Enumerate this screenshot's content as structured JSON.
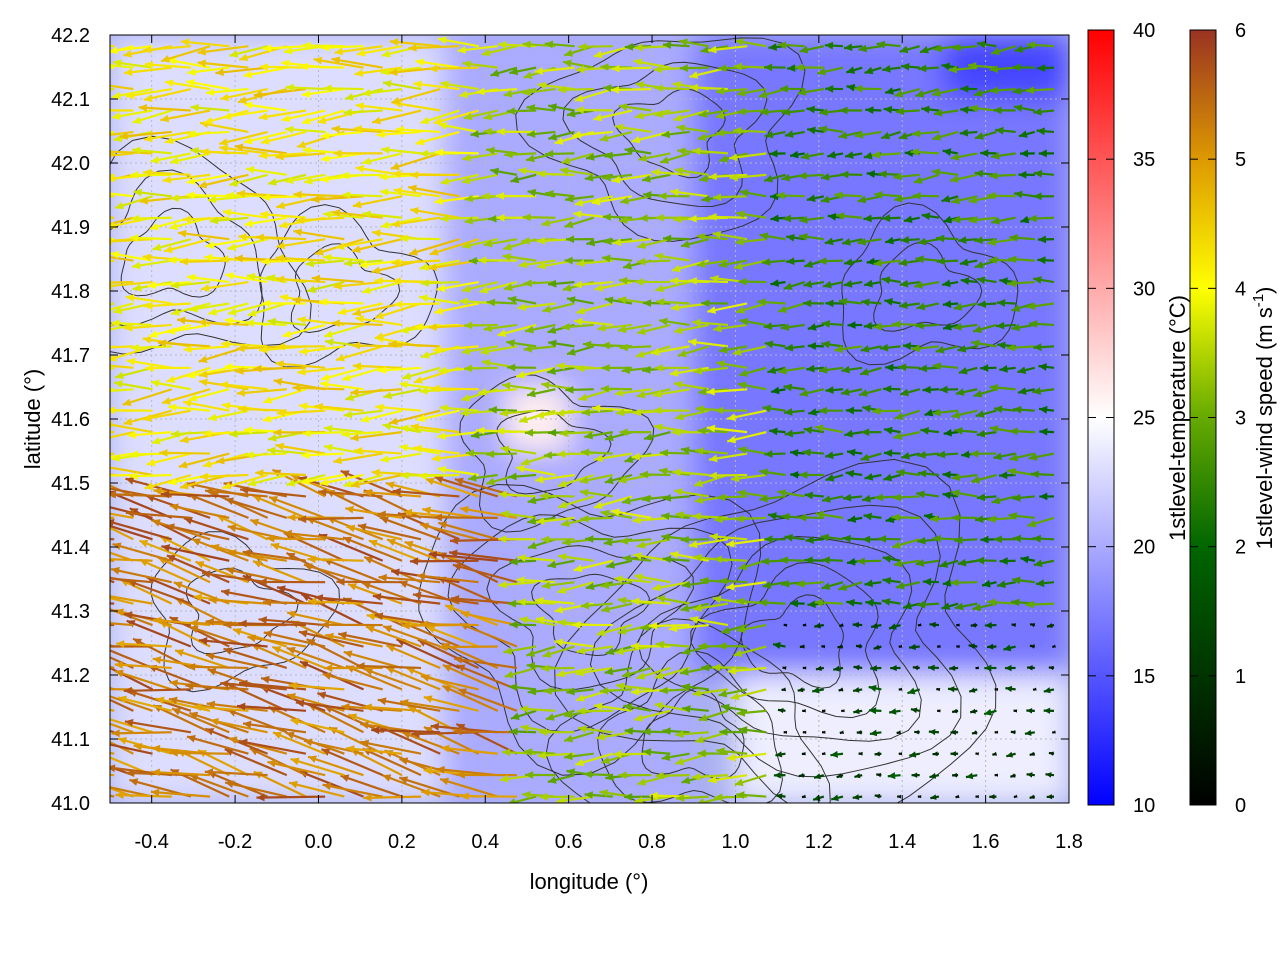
{
  "chart_data": {
    "type": "heatmap",
    "subtype": "map with vector field and contour overlay",
    "title": "",
    "xlabel": "longitude (°)",
    "ylabel": "latitude (°)",
    "xlim": [
      -0.5,
      1.8
    ],
    "ylim": [
      41.0,
      42.2
    ],
    "x_ticks": [
      -0.4,
      -0.2,
      0.0,
      0.2,
      0.4,
      0.6,
      0.8,
      1.0,
      1.2,
      1.4,
      1.6,
      1.8
    ],
    "x_tick_labels": [
      "-0.4",
      "-0.2",
      "0.0",
      "0.2",
      "0.4",
      "0.6",
      "0.8",
      "1.0",
      "1.2",
      "1.4",
      "1.6",
      "1.8"
    ],
    "y_ticks": [
      41.0,
      41.1,
      41.2,
      41.3,
      41.4,
      41.5,
      41.6,
      41.7,
      41.8,
      41.9,
      42.0,
      42.1,
      42.2
    ],
    "y_tick_labels": [
      "41.0",
      "41.1",
      "41.2",
      "41.3",
      "41.4",
      "41.5",
      "41.6",
      "41.7",
      "41.8",
      "41.9",
      "42.0",
      "42.1",
      "42.2"
    ],
    "grid": true,
    "series": [
      {
        "name": "1stlevel-temperature (°C)",
        "kind": "shaded field",
        "range": [
          10,
          40
        ],
        "ticks": [
          "10",
          "15",
          "20",
          "25",
          "30",
          "35",
          "40"
        ],
        "colormap": [
          "#0000ff",
          "#ffffff",
          "#ff0000"
        ],
        "regions": [
          {
            "lon": [
              -0.5,
              0.3
            ],
            "lat": [
              41.0,
              42.2
            ],
            "approx": 23
          },
          {
            "lon": [
              0.3,
              0.9
            ],
            "lat": [
              41.0,
              42.2
            ],
            "approx": 20
          },
          {
            "lon": [
              0.45,
              0.6
            ],
            "lat": [
              41.55,
              41.65
            ],
            "approx": 26
          },
          {
            "lon": [
              0.9,
              1.8
            ],
            "lat": [
              41.2,
              42.2
            ],
            "approx": 17
          },
          {
            "lon": [
              1.5,
              1.8
            ],
            "lat": [
              42.1,
              42.2
            ],
            "approx": 14
          },
          {
            "lon": [
              1.0,
              1.8
            ],
            "lat": [
              41.0,
              41.2
            ],
            "approx": 24
          }
        ]
      },
      {
        "name": "1stlevel-wind speed (m s-1)",
        "kind": "vector arrows",
        "range": [
          0,
          6
        ],
        "ticks": [
          "0",
          "1",
          "2",
          "3",
          "4",
          "5",
          "6"
        ],
        "colormap": [
          "#000000",
          "#006600",
          "#66aa00",
          "#ffff00",
          "#dd9900",
          "#993322"
        ],
        "direction_note": "mostly westward flow",
        "zones": [
          {
            "lon": [
              -0.5,
              0.5
            ],
            "lat": [
              41.0,
              41.5
            ],
            "approx_speed": 5.2
          },
          {
            "lon": [
              -0.5,
              0.4
            ],
            "lat": [
              41.5,
              42.2
            ],
            "approx_speed": 3.8
          },
          {
            "lon": [
              0.4,
              1.1
            ],
            "lat": [
              41.0,
              42.2
            ],
            "approx_speed": 2.8
          },
          {
            "lon": [
              1.1,
              1.8
            ],
            "lat": [
              41.3,
              42.2
            ],
            "approx_speed": 1.8
          },
          {
            "lon": [
              1.1,
              1.8
            ],
            "lat": [
              41.0,
              41.3
            ],
            "approx_speed": 0.5
          }
        ]
      },
      {
        "name": "",
        "kind": "contour lines",
        "color": "#333333",
        "centers": [
          {
            "lon": -0.35,
            "lat": 41.85,
            "levels": 3
          },
          {
            "lon": 0.05,
            "lat": 41.8,
            "levels": 2
          },
          {
            "lon": 0.55,
            "lat": 41.55,
            "levels": 2
          },
          {
            "lon": 0.65,
            "lat": 41.3,
            "levels": 4
          },
          {
            "lon": 0.85,
            "lat": 42.05,
            "levels": 3
          },
          {
            "lon": 1.15,
            "lat": 41.25,
            "levels": 5
          },
          {
            "lon": 0.9,
            "lat": 41.1,
            "levels": 3
          },
          {
            "lon": 1.45,
            "lat": 41.8,
            "levels": 2
          },
          {
            "lon": -0.2,
            "lat": 41.3,
            "levels": 2
          }
        ]
      }
    ],
    "colorbars": [
      {
        "label": "1stlevel-temperature (°C)",
        "min": 10,
        "max": 40,
        "tick_labels": [
          "10",
          "15",
          "20",
          "25",
          "30",
          "35",
          "40"
        ],
        "placement": "right"
      },
      {
        "label_main": "1stlevel-wind speed (m s",
        "label_sup": "-1",
        "label_end": ")",
        "min": 0,
        "max": 6,
        "tick_labels": [
          "0",
          "1",
          "2",
          "3",
          "4",
          "5",
          "6"
        ],
        "placement": "far-right"
      }
    ]
  }
}
